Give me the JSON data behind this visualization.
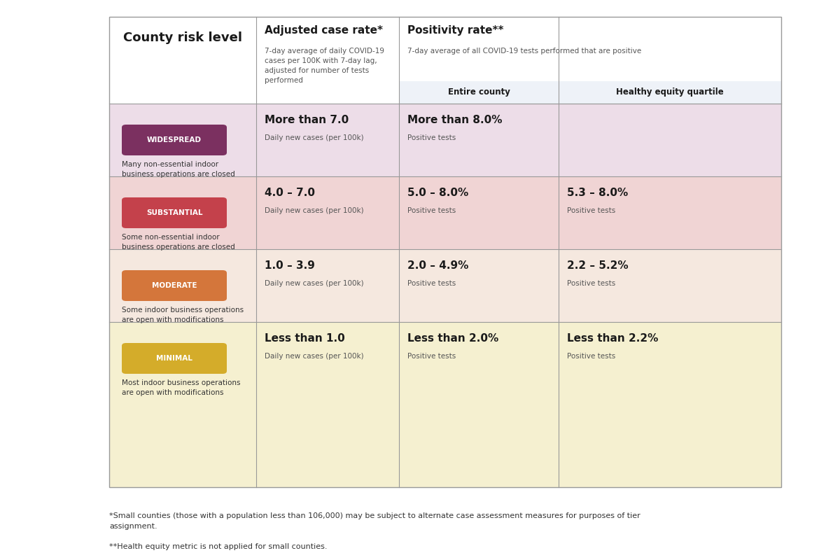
{
  "title_col1": "County risk level",
  "title_col2": "Adjusted case rate*",
  "title_col2_sub": "7-day average of daily COVID-19\ncases per 100K with 7-day lag,\nadjusted for number of tests\nperformed",
  "title_col3": "Positivity rate**",
  "title_col3_sub": "7-day average of all COVID-19 tests performed that are positive",
  "subheader_col3a": "Entire county",
  "subheader_col3b": "Healthy equity quartile",
  "tiers": [
    {
      "name": "WIDESPREAD",
      "badge_color": "#7b3060",
      "row_bg": "#eddde8",
      "description": "Many non-essential indoor\nbusiness operations are closed",
      "case_rate_main": "More than 7.0",
      "case_rate_sub": "Daily new cases (per 100k)",
      "positivity_entire_main": "More than 8.0%",
      "positivity_entire_sub": "Positive tests",
      "positivity_equity_main": "",
      "positivity_equity_sub": ""
    },
    {
      "name": "SUBSTANTIAL",
      "badge_color": "#c4414b",
      "row_bg": "#f0d4d4",
      "description": "Some non-essential indoor\nbusiness operations are closed",
      "case_rate_main": "4.0 – 7.0",
      "case_rate_sub": "Daily new cases (per 100k)",
      "positivity_entire_main": "5.0 – 8.0%",
      "positivity_entire_sub": "Positive tests",
      "positivity_equity_main": "5.3 – 8.0%",
      "positivity_equity_sub": "Positive tests"
    },
    {
      "name": "MODERATE",
      "badge_color": "#d4763b",
      "row_bg": "#f5e8df",
      "description": "Some indoor business operations\nare open with modifications",
      "case_rate_main": "1.0 – 3.9",
      "case_rate_sub": "Daily new cases (per 100k)",
      "positivity_entire_main": "2.0 – 4.9%",
      "positivity_entire_sub": "Positive tests",
      "positivity_equity_main": "2.2 – 5.2%",
      "positivity_equity_sub": "Positive tests"
    },
    {
      "name": "MINIMAL",
      "badge_color": "#d4ac2a",
      "row_bg": "#f5f0d0",
      "description": "Most indoor business operations\nare open with modifications",
      "case_rate_main": "Less than 1.0",
      "case_rate_sub": "Daily new cases (per 100k)",
      "positivity_entire_main": "Less than 2.0%",
      "positivity_entire_sub": "Positive tests",
      "positivity_equity_main": "Less than 2.2%",
      "positivity_equity_sub": "Positive tests"
    }
  ],
  "footnote1": "*Small counties (those with a population less than 106,000) may be subject to alternate case assessment measures for purposes of tier\nassignment.",
  "footnote2": "**Health equity metric is not applied for small counties.",
  "bg_color": "#ffffff",
  "header_bg": "#ffffff",
  "subheader_bg": "#eef2f8"
}
